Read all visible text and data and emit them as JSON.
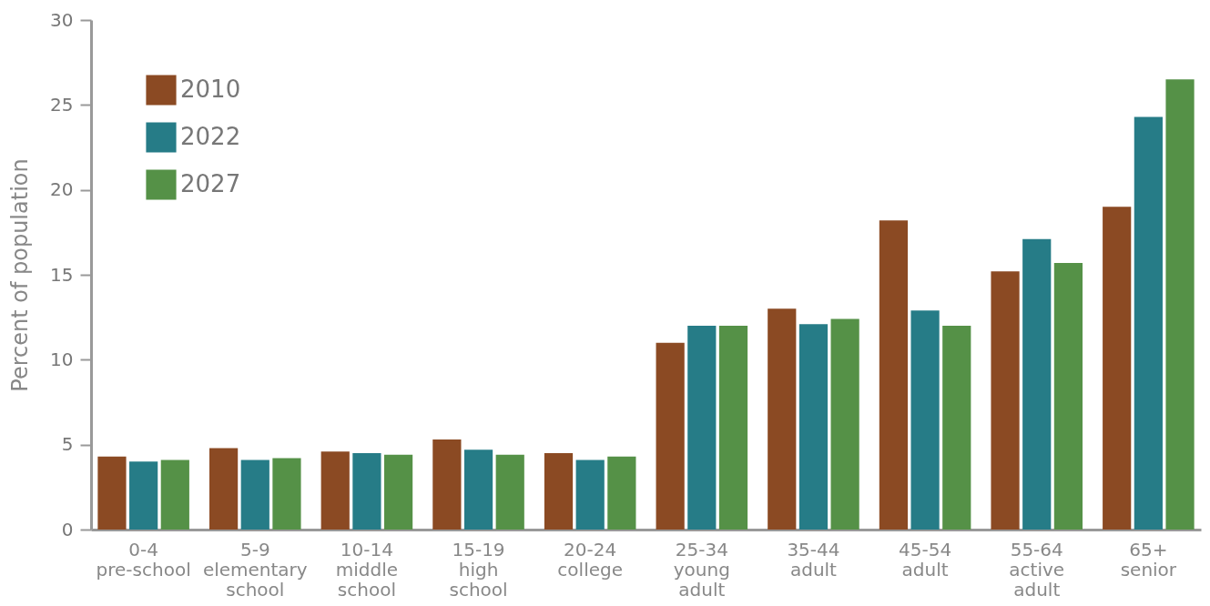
{
  "chart_data": {
    "type": "bar",
    "ylabel": "Percent of population",
    "categories": [
      "0-4\npre-school",
      "5-9\nelementary\nschool",
      "10-14\nmiddle\nschool",
      "15-19\nhigh\nschool",
      "20-24\ncollege",
      "25-34\nyoung\nadult",
      "35-44\nadult",
      "45-54\nadult",
      "55-64\nactive\nadult",
      "65+\nsenior"
    ],
    "series": [
      {
        "name": "2010",
        "color": "#8b4a23",
        "values": [
          4.3,
          4.8,
          4.6,
          5.3,
          4.5,
          11.0,
          13.0,
          18.2,
          15.2,
          19.0
        ]
      },
      {
        "name": "2022",
        "color": "#267c87",
        "values": [
          4.0,
          4.1,
          4.5,
          4.7,
          4.1,
          12.0,
          12.1,
          12.9,
          17.1,
          24.3
        ]
      },
      {
        "name": "2027",
        "color": "#559147",
        "values": [
          4.1,
          4.2,
          4.4,
          4.4,
          4.3,
          12.0,
          12.4,
          12.0,
          15.7,
          26.5
        ]
      }
    ],
    "ylim": [
      0,
      30
    ],
    "yticks": [
      0,
      5,
      10,
      15,
      20,
      25,
      30
    ],
    "grid": false,
    "legend": "top left"
  }
}
